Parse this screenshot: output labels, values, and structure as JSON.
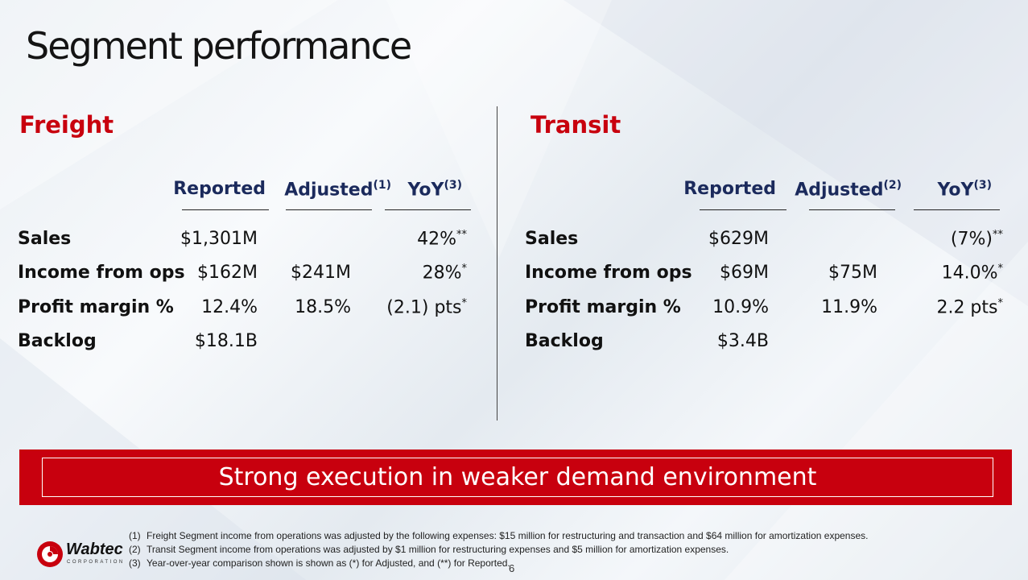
{
  "slide": {
    "title": "Segment performance",
    "page_number": "6"
  },
  "freight": {
    "heading": "Freight",
    "headers": {
      "reported": "Reported",
      "adjusted": "Adjusted",
      "adjusted_note": "(1)",
      "yoy": "YoY",
      "yoy_note": "(3)"
    },
    "rows": [
      {
        "label": "Sales",
        "reported": "$1,301M",
        "adjusted": "",
        "yoy": "42%",
        "yoy_mark": "**"
      },
      {
        "label": "Income from ops",
        "reported": "$162M",
        "adjusted": "$241M",
        "yoy": "28%",
        "yoy_mark": "*"
      },
      {
        "label": "Profit margin %",
        "reported": "12.4%",
        "adjusted": "18.5%",
        "yoy": "(2.1) pts",
        "yoy_mark": "*"
      },
      {
        "label": "Backlog",
        "reported": "$18.1B",
        "adjusted": "",
        "yoy": "",
        "yoy_mark": ""
      }
    ]
  },
  "transit": {
    "heading": "Transit",
    "headers": {
      "reported": "Reported",
      "adjusted": "Adjusted",
      "adjusted_note": "(2)",
      "yoy": "YoY",
      "yoy_note": "(3)"
    },
    "rows": [
      {
        "label": "Sales",
        "reported": "$629M",
        "adjusted": "",
        "yoy": "(7%)",
        "yoy_mark": "**"
      },
      {
        "label": "Income from ops",
        "reported": "$69M",
        "adjusted": "$75M",
        "yoy": "14.0%",
        "yoy_mark": "*"
      },
      {
        "label": "Profit margin %",
        "reported": "10.9%",
        "adjusted": "11.9%",
        "yoy": "2.2 pts",
        "yoy_mark": "*"
      },
      {
        "label": "Backlog",
        "reported": "$3.4B",
        "adjusted": "",
        "yoy": "",
        "yoy_mark": ""
      }
    ]
  },
  "banner": {
    "text": "Strong execution in weaker demand environment"
  },
  "footnotes": [
    {
      "num": "(1)",
      "text": "Freight Segment income from operations was adjusted by the following expenses:  $15 million for restructuring and transaction and  $64 million for amortization expenses."
    },
    {
      "num": "(2)",
      "text": "Transit Segment income from operations was adjusted by $1 million for restructuring expenses and $5 million for amortization expenses."
    },
    {
      "num": "(3)",
      "text": "Year-over-year comparison shown is shown as (*) for Adjusted, and (**) for Reported."
    }
  ],
  "logo": {
    "name": "Wabtec",
    "subtitle": "CORPORATION"
  },
  "colors": {
    "accent_red": "#c8000e",
    "header_navy": "#1b2a5c",
    "text": "#111111"
  }
}
